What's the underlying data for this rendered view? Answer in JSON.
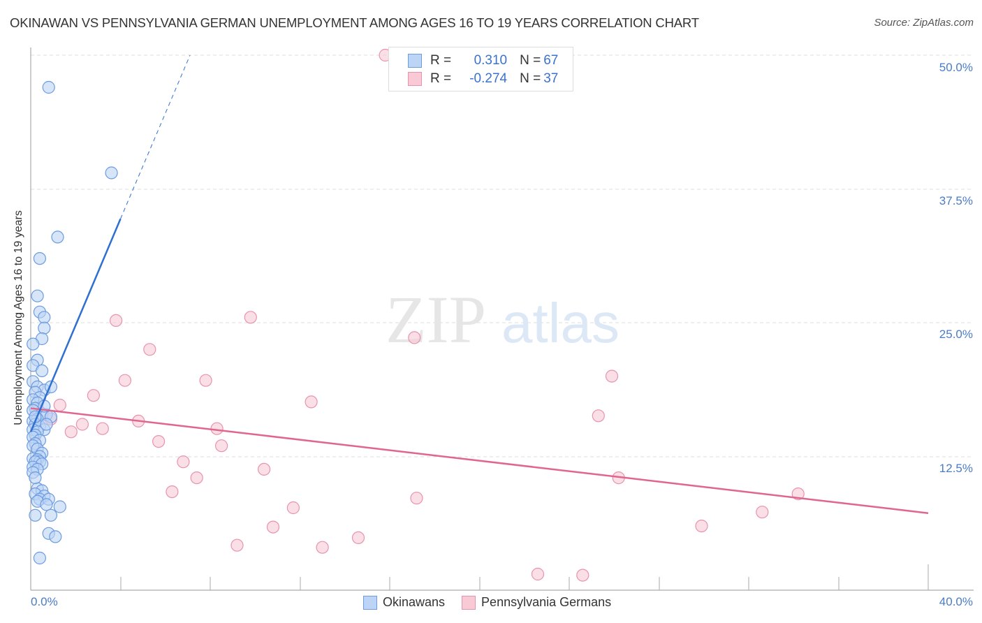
{
  "header": {
    "title": "OKINAWAN VS PENNSYLVANIA GERMAN UNEMPLOYMENT AMONG AGES 16 TO 19 YEARS CORRELATION CHART",
    "source": "Source: ZipAtlas.com"
  },
  "watermark": {
    "part1": "ZIP",
    "part2": "atlas"
  },
  "legend_top": {
    "rows": [
      {
        "r_label": "R =",
        "r_value": "0.310",
        "n_label": "N =",
        "n_value": "67"
      },
      {
        "r_label": "R =",
        "r_value": "-0.274",
        "n_label": "N =",
        "n_value": "37"
      }
    ]
  },
  "legend_bottom": {
    "items": [
      "Okinawans",
      "Pennsylvania Germans"
    ]
  },
  "axes": {
    "ylabel": "Unemployment Among Ages 16 to 19 years",
    "yticks": [
      "50.0%",
      "37.5%",
      "25.0%",
      "12.5%"
    ],
    "xticks": [
      "0.0%",
      "40.0%"
    ]
  },
  "colors": {
    "blue_fill": "#bcd4f5",
    "blue_stroke": "#6b9be0",
    "blue_line": "#2f6fd0",
    "pink_fill": "#f9c9d6",
    "pink_stroke": "#e893ad",
    "pink_line": "#e0658f",
    "tick_text": "#4a7cc9"
  },
  "chart_data": {
    "type": "scatter",
    "title": "OKINAWAN VS PENNSYLVANIA GERMAN UNEMPLOYMENT AMONG AGES 16 TO 19 YEARS CORRELATION CHART",
    "xlabel": "",
    "ylabel": "Unemployment Among Ages 16 to 19 years",
    "xlim": [
      0,
      40
    ],
    "ylim": [
      0,
      50
    ],
    "x_ticks": [
      "0.0%",
      "40.0%"
    ],
    "y_ticks": [
      "12.5%",
      "25.0%",
      "37.5%",
      "50.0%"
    ],
    "grid": true,
    "legend_position": "bottom",
    "series": [
      {
        "name": "Okinawans",
        "R": 0.31,
        "N": 67,
        "trend": {
          "x0": 0,
          "y0": 14.8,
          "x1": 4.0,
          "y1": 34.7,
          "dashed_to": {
            "x": 7.1,
            "y": 50
          }
        },
        "points": [
          [
            0.8,
            47.0
          ],
          [
            3.6,
            39.0
          ],
          [
            1.2,
            33.0
          ],
          [
            0.4,
            31.0
          ],
          [
            0.3,
            27.5
          ],
          [
            0.4,
            26.0
          ],
          [
            0.6,
            25.5
          ],
          [
            0.6,
            24.5
          ],
          [
            0.5,
            23.5
          ],
          [
            0.1,
            23.0
          ],
          [
            0.3,
            21.5
          ],
          [
            0.1,
            21.0
          ],
          [
            0.5,
            20.5
          ],
          [
            0.1,
            19.5
          ],
          [
            0.3,
            19.0
          ],
          [
            0.6,
            18.7
          ],
          [
            0.9,
            19.0
          ],
          [
            0.2,
            18.5
          ],
          [
            0.4,
            18.0
          ],
          [
            0.1,
            17.8
          ],
          [
            0.3,
            17.5
          ],
          [
            0.2,
            17.0
          ],
          [
            0.1,
            16.8
          ],
          [
            0.5,
            16.5
          ],
          [
            0.7,
            16.4
          ],
          [
            0.9,
            16.2
          ],
          [
            0.3,
            16.0
          ],
          [
            0.1,
            15.8
          ],
          [
            0.2,
            15.5
          ],
          [
            0.4,
            15.3
          ],
          [
            0.6,
            15.0
          ],
          [
            0.1,
            15.0
          ],
          [
            0.3,
            14.8
          ],
          [
            0.2,
            14.5
          ],
          [
            0.1,
            14.3
          ],
          [
            0.4,
            14.0
          ],
          [
            0.7,
            15.5
          ],
          [
            0.2,
            13.7
          ],
          [
            0.1,
            13.5
          ],
          [
            0.3,
            13.2
          ],
          [
            0.5,
            12.8
          ],
          [
            0.4,
            12.5
          ],
          [
            0.1,
            12.3
          ],
          [
            0.3,
            12.2
          ],
          [
            0.4,
            12.0
          ],
          [
            0.2,
            12.0
          ],
          [
            0.5,
            11.8
          ],
          [
            0.1,
            11.5
          ],
          [
            0.3,
            11.3
          ],
          [
            0.1,
            11.0
          ],
          [
            0.3,
            9.5
          ],
          [
            0.5,
            9.3
          ],
          [
            0.2,
            9.0
          ],
          [
            0.6,
            8.8
          ],
          [
            0.4,
            8.5
          ],
          [
            0.8,
            8.5
          ],
          [
            0.3,
            8.3
          ],
          [
            0.7,
            8.0
          ],
          [
            1.3,
            7.8
          ],
          [
            0.2,
            7.0
          ],
          [
            0.9,
            7.0
          ],
          [
            0.8,
            5.3
          ],
          [
            1.1,
            5.0
          ],
          [
            0.4,
            3.0
          ],
          [
            0.2,
            16.2
          ],
          [
            0.6,
            17.2
          ],
          [
            0.2,
            10.5
          ]
        ]
      },
      {
        "name": "Pennsylvania Germans",
        "R": -0.274,
        "N": 37,
        "trend": {
          "x0": 0,
          "y0": 17.0,
          "x1": 40,
          "y1": 7.2
        },
        "points": [
          [
            15.8,
            50.0
          ],
          [
            0.3,
            17.0
          ],
          [
            1.3,
            17.3
          ],
          [
            0.9,
            16.0
          ],
          [
            1.8,
            14.8
          ],
          [
            2.3,
            15.5
          ],
          [
            2.8,
            18.2
          ],
          [
            3.2,
            15.1
          ],
          [
            3.8,
            25.2
          ],
          [
            4.2,
            19.6
          ],
          [
            4.8,
            15.8
          ],
          [
            5.3,
            22.5
          ],
          [
            5.7,
            13.9
          ],
          [
            6.3,
            9.2
          ],
          [
            6.8,
            12.0
          ],
          [
            7.4,
            10.5
          ],
          [
            7.8,
            19.6
          ],
          [
            8.3,
            15.1
          ],
          [
            8.5,
            13.5
          ],
          [
            9.2,
            4.2
          ],
          [
            9.8,
            25.5
          ],
          [
            10.4,
            11.3
          ],
          [
            10.8,
            5.9
          ],
          [
            11.7,
            7.7
          ],
          [
            12.5,
            17.6
          ],
          [
            13.0,
            4.0
          ],
          [
            14.6,
            4.9
          ],
          [
            17.1,
            23.6
          ],
          [
            17.2,
            8.6
          ],
          [
            22.6,
            1.5
          ],
          [
            24.6,
            1.4
          ],
          [
            25.3,
            16.3
          ],
          [
            25.9,
            20.0
          ],
          [
            26.2,
            10.5
          ],
          [
            29.9,
            6.0
          ],
          [
            32.6,
            7.3
          ],
          [
            34.2,
            9.0
          ]
        ]
      }
    ]
  }
}
